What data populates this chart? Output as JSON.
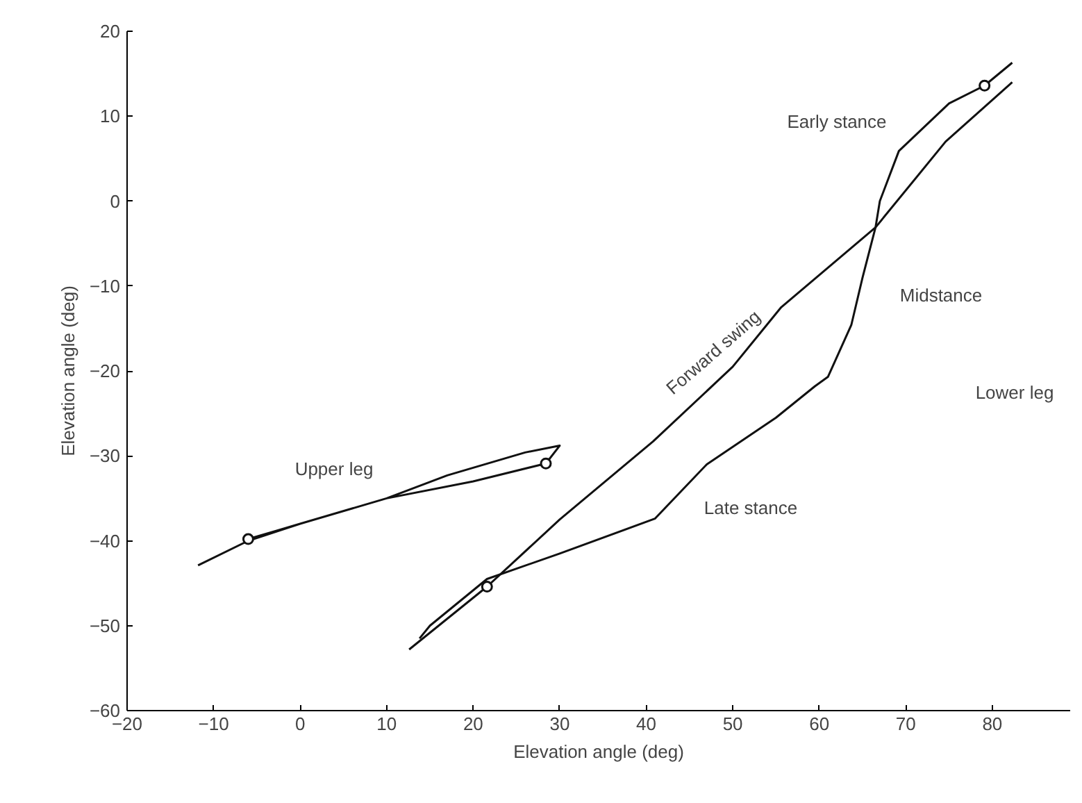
{
  "chart_data": {
    "type": "line",
    "xlabel": "Elevation angle (deg)",
    "ylabel": "Elevation angle (deg)",
    "xlim": [
      -20,
      89
    ],
    "ylim": [
      -60,
      20
    ],
    "xticks": [
      -20,
      -10,
      0,
      10,
      20,
      30,
      40,
      50,
      60,
      70,
      80
    ],
    "yticks": [
      -60,
      -50,
      -40,
      -30,
      -20,
      -10,
      0,
      10,
      20
    ],
    "grid": false,
    "line_style": "solid",
    "series": [
      {
        "color": "#111111",
        "marker": "none",
        "x": [
          -11.8,
          -6,
          0,
          10,
          17,
          26,
          30,
          28.4,
          20,
          10,
          0,
          -6
        ],
        "values": [
          -42.9,
          -40,
          -38,
          -35,
          -32.3,
          -29.6,
          -28.8,
          -30.9,
          -33,
          -35,
          -38,
          -39.8
        ]
      },
      {
        "color": "#111111",
        "marker": "none",
        "x": [
          12.6,
          21.6,
          30,
          40.8,
          50,
          55.6,
          66.5,
          74.6,
          82.3
        ],
        "values": [
          -52.8,
          -45.4,
          -37.5,
          -28.3,
          -19.5,
          -12.5,
          -3.1,
          7,
          14
        ]
      },
      {
        "color": "#111111",
        "marker": "none",
        "x": [
          82.3,
          79.1,
          75,
          69.2,
          67,
          66.5,
          65,
          63.7,
          61,
          59.5,
          55,
          47,
          41,
          30,
          21.6,
          15,
          13.8
        ],
        "values": [
          16.3,
          13.6,
          11.5,
          5.9,
          0,
          -3.1,
          -9,
          -14.6,
          -20.7,
          -21.8,
          -25.5,
          -31,
          -37.4,
          -41.5,
          -44.5,
          -50,
          -51.5
        ]
      },
      {
        "type": "scatter",
        "color": "#111111",
        "marker": "circle",
        "x": [
          -6,
          28.4,
          21.6,
          79.1
        ],
        "values": [
          -39.8,
          -30.9,
          -45.4,
          13.6
        ]
      }
    ],
    "annotations": [
      "Upper leg",
      "Late stance",
      "Forward swing",
      "Early stance",
      "Midstance",
      "Lower leg"
    ]
  }
}
